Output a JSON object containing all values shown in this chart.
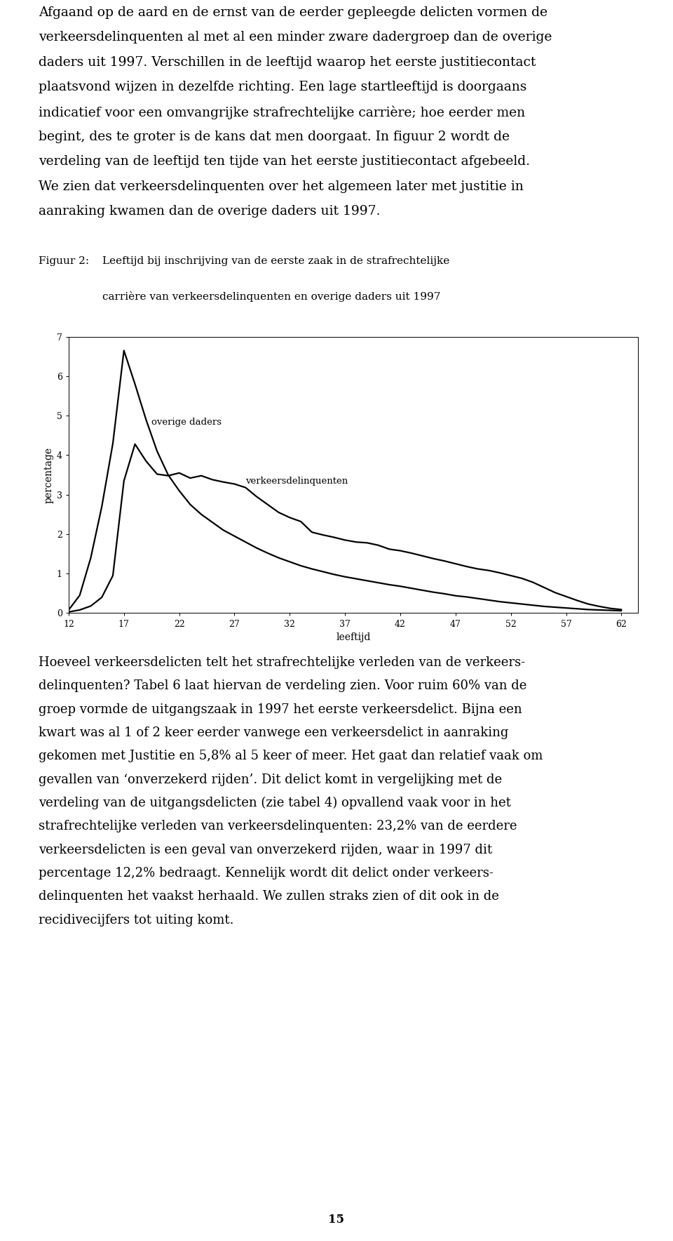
{
  "background_color": "#ffffff",
  "line_color": "#000000",
  "xlim": [
    12,
    63.5
  ],
  "ylim": [
    0,
    7
  ],
  "xticks": [
    12,
    17,
    22,
    27,
    32,
    37,
    42,
    47,
    52,
    57,
    62
  ],
  "yticks": [
    0,
    1,
    2,
    3,
    4,
    5,
    6,
    7
  ],
  "xlabel": "leeftijd",
  "ylabel": "percentage",
  "overige_daders_label": "overige daders",
  "verkeers_label": "verkeersdelinquenten",
  "figuur_label": "Figuur 2:",
  "figuur_title_line1": "Leeftijd bij inschrijving van de eerste zaak in de strafrechtelijke",
  "figuur_title_line2": "carrière van verkeersdelinquenten en overige daders uit 1997",
  "page_number": "15",
  "top_paragraph": "Afgaand op de aard en de ernst van de eerder gepleegde delicten vormen de verkeersdelinquenten al met al een minder zware dadergroep dan de overige daders uit 1997. Verschillen in de leeftijd waarop het eerste justitiecontact plaatsvond wijzen in dezelfde richting. Een lage startleeftijd is doorgaans indicatief voor een omvangrijke strafrechtelijke carrière; hoe eerder men begint, des te groter is de kans dat men doorgaat. In figuur 2 wordt de verdeling van de leeftijd ten tijde van het eerste justitiecontact afgebeeld. We zien dat verkeersdelinquenten over het algemeen later met justitie in aanraking kwamen dan de overige daders uit 1997.",
  "bottom_paragraph": "Hoeveel verkeersdelicten telt het strafrechtelijke verleden van de verkeers-delinquenten? Tabel 6 laat hiervan de verdeling zien. Voor ruim 60% van de groep vormde de uitgangszaak in 1997 het eerste verkeersdelict. Bijna een kwart was al 1 of 2 keer eerder vanwege een verkeersdelict in aanraking gekomen met Justitie en 5,8% al 5 keer of meer. Het gaat dan relatief vaak om gevallen van ‘onverzekerd rijden’. Dit delict komt in vergelijking met de verdeling van de uitgangsdelicten (zie tabel 4) opvallend vaak voor in het strafrechtelijke verleden van verkeersdelinquenten: 23,2% van de eerdere verkeersdelicten is een geval van onverzekerd rijden, waar in 1997 dit percentage 12,2% bedraagt. Kennelijk wordt dit delict onder verkeersdelinquenten het vaakst herhaald. We zullen straks zien of dit ook in de recidivecijfers tot uiting komt.",
  "overige_daders_x": [
    12,
    13,
    14,
    15,
    16,
    17,
    18,
    19,
    20,
    21,
    22,
    23,
    24,
    25,
    26,
    27,
    28,
    29,
    30,
    31,
    32,
    33,
    34,
    35,
    36,
    37,
    38,
    39,
    40,
    41,
    42,
    43,
    44,
    45,
    46,
    47,
    48,
    49,
    50,
    51,
    52,
    53,
    54,
    55,
    56,
    57,
    58,
    59,
    60,
    61,
    62
  ],
  "overige_daders_y": [
    0.08,
    0.45,
    1.4,
    2.7,
    4.3,
    6.65,
    5.8,
    4.9,
    4.1,
    3.5,
    3.1,
    2.75,
    2.5,
    2.3,
    2.1,
    1.95,
    1.8,
    1.65,
    1.52,
    1.4,
    1.3,
    1.2,
    1.12,
    1.05,
    0.98,
    0.92,
    0.87,
    0.82,
    0.77,
    0.72,
    0.68,
    0.63,
    0.58,
    0.53,
    0.49,
    0.44,
    0.41,
    0.37,
    0.33,
    0.29,
    0.26,
    0.23,
    0.2,
    0.17,
    0.15,
    0.13,
    0.11,
    0.09,
    0.08,
    0.07,
    0.06
  ],
  "verkeers_x": [
    12,
    13,
    14,
    15,
    16,
    17,
    18,
    19,
    20,
    21,
    22,
    23,
    24,
    25,
    26,
    27,
    28,
    29,
    30,
    31,
    32,
    33,
    34,
    35,
    36,
    37,
    38,
    39,
    40,
    41,
    42,
    43,
    44,
    45,
    46,
    47,
    48,
    49,
    50,
    51,
    52,
    53,
    54,
    55,
    56,
    57,
    58,
    59,
    60,
    61,
    62
  ],
  "verkeers_y": [
    0.03,
    0.08,
    0.18,
    0.4,
    0.95,
    3.35,
    4.28,
    3.85,
    3.52,
    3.48,
    3.55,
    3.42,
    3.48,
    3.38,
    3.32,
    3.27,
    3.18,
    2.95,
    2.75,
    2.55,
    2.42,
    2.32,
    2.05,
    1.98,
    1.92,
    1.85,
    1.8,
    1.78,
    1.72,
    1.62,
    1.58,
    1.52,
    1.45,
    1.38,
    1.32,
    1.25,
    1.18,
    1.12,
    1.08,
    1.02,
    0.95,
    0.88,
    0.78,
    0.65,
    0.52,
    0.42,
    0.32,
    0.23,
    0.17,
    0.12,
    0.09
  ]
}
